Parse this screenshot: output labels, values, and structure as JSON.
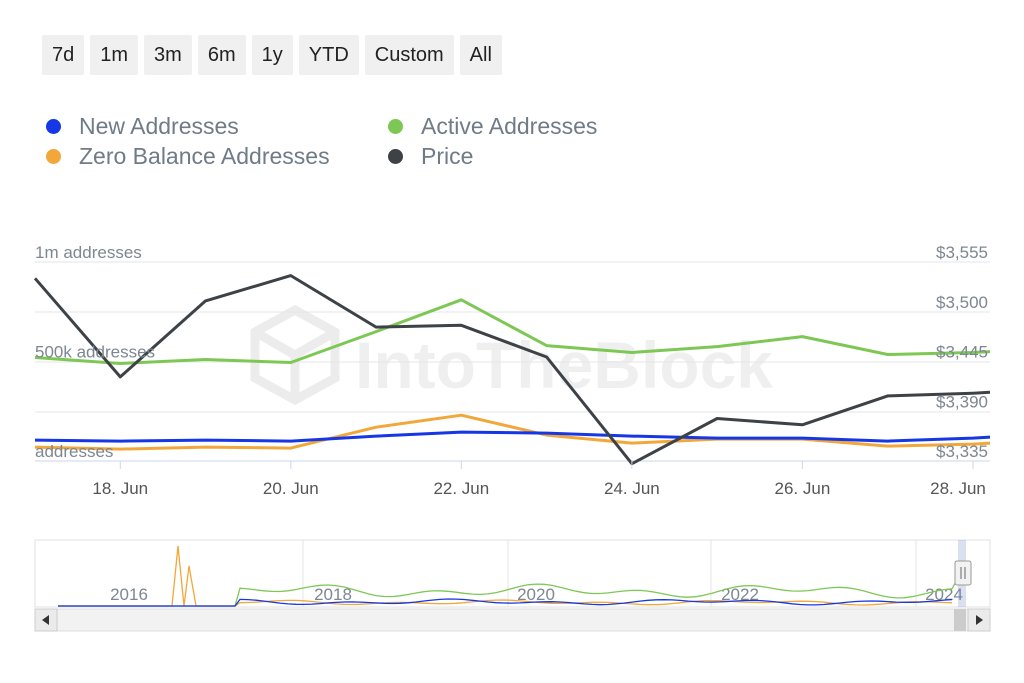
{
  "range_buttons": [
    "7d",
    "1m",
    "3m",
    "6m",
    "1y",
    "YTD",
    "Custom",
    "All"
  ],
  "watermark": "IntoTheBlock",
  "colors": {
    "new": "#1637e6",
    "active": "#7dc855",
    "zero": "#f2a73b",
    "price": "#3d4247",
    "grid": "#e6e6e6",
    "axis_text": "#7d8791"
  },
  "legend": [
    {
      "name": "New Addresses",
      "color": "#1637e6"
    },
    {
      "name": "Active Addresses",
      "color": "#7dc855"
    },
    {
      "name": "Zero Balance Addresses",
      "color": "#f2a73b"
    },
    {
      "name": "Price",
      "color": "#3d4247"
    }
  ],
  "chart_data": {
    "type": "line",
    "x_ticks": [
      "18. Jun",
      "20. Jun",
      "22. Jun",
      "24. Jun",
      "26. Jun",
      "28. Jun"
    ],
    "x_tick_days": [
      18,
      20,
      22,
      24,
      26,
      28
    ],
    "x_range": [
      17,
      28.2
    ],
    "y_left": {
      "tick_labels": [
        "1m addresses",
        "500k addresses",
        "addresses"
      ],
      "ticks": [
        1000000,
        500000,
        0
      ],
      "range": [
        0,
        1000000
      ]
    },
    "y_right": {
      "tick_labels": [
        "$3,555",
        "$3,500",
        "$3,445",
        "$3,390",
        "$3,335"
      ],
      "ticks": [
        3555,
        3500,
        3445,
        3390,
        3335
      ],
      "range": [
        3335,
        3555
      ]
    },
    "series": [
      {
        "name": "Active Addresses",
        "axis": "left",
        "x": [
          17,
          18,
          19,
          20,
          21,
          22,
          23,
          24,
          25,
          26,
          27,
          28,
          28.2
        ],
        "values": [
          520000,
          490000,
          510000,
          495000,
          650000,
          810000,
          580000,
          545000,
          575000,
          625000,
          535000,
          545000,
          550000
        ]
      },
      {
        "name": "Zero Balance Addresses",
        "axis": "left",
        "x": [
          17,
          18,
          19,
          20,
          21,
          22,
          23,
          24,
          25,
          26,
          27,
          28,
          28.2
        ],
        "values": [
          70000,
          60000,
          70000,
          65000,
          170000,
          230000,
          130000,
          90000,
          110000,
          110000,
          75000,
          85000,
          90000
        ]
      },
      {
        "name": "New Addresses",
        "axis": "left",
        "x": [
          17,
          18,
          19,
          20,
          21,
          22,
          23,
          24,
          25,
          26,
          27,
          28,
          28.2
        ],
        "values": [
          105000,
          100000,
          105000,
          100000,
          125000,
          145000,
          140000,
          125000,
          115000,
          115000,
          100000,
          115000,
          120000
        ]
      },
      {
        "name": "Price",
        "axis": "right",
        "x": [
          17,
          18,
          19,
          20,
          21,
          22,
          23,
          24,
          25,
          26,
          27,
          28,
          28.2
        ],
        "values": [
          3537,
          3428,
          3512,
          3540,
          3483,
          3485,
          3450,
          3332,
          3382,
          3375,
          3407,
          3410,
          3411
        ]
      }
    ],
    "navigator": {
      "year_labels": [
        "2016",
        "2018",
        "2020",
        "2022",
        "2024"
      ]
    }
  }
}
